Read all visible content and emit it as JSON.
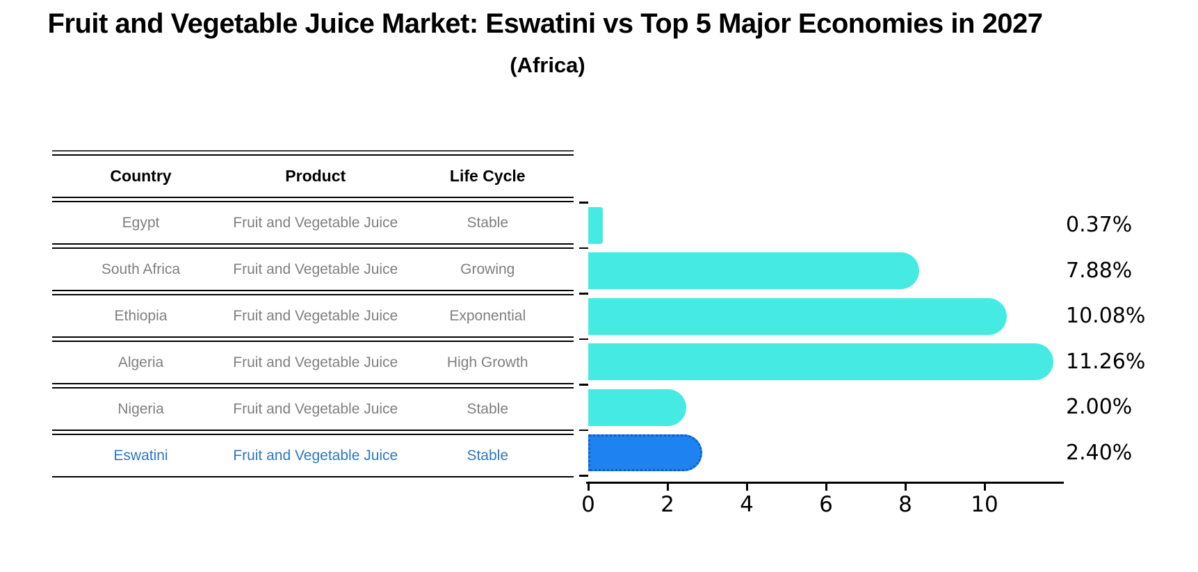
{
  "title": "Fruit and Vegetable Juice Market: Eswatini vs Top 5 Major Economies in 2027",
  "subtitle": "(Africa)",
  "table": {
    "headers": [
      "Country",
      "Product",
      "Life Cycle"
    ],
    "rows": [
      {
        "country": "Egypt",
        "product": "Fruit and Vegetable Juice",
        "life_cycle": "Stable",
        "highlighted": false
      },
      {
        "country": "South Africa",
        "product": "Fruit and Vegetable Juice",
        "life_cycle": "Growing",
        "highlighted": false
      },
      {
        "country": "Ethiopia",
        "product": "Fruit and Vegetable Juice",
        "life_cycle": "Exponential",
        "highlighted": false
      },
      {
        "country": "Algeria",
        "product": "Fruit and Vegetable Juice",
        "life_cycle": "High Growth",
        "highlighted": false
      },
      {
        "country": "Nigeria",
        "product": "Fruit and Vegetable Juice",
        "life_cycle": "Stable",
        "highlighted": false
      },
      {
        "country": "Eswatini",
        "product": "Fruit and Vegetable Juice",
        "life_cycle": "Stable",
        "highlighted": true
      }
    ]
  },
  "chart_data": {
    "type": "bar",
    "orientation": "horizontal",
    "title": "Fruit and Vegetable Juice Market: Eswatini vs Top 5 Major Economies in 2027",
    "subtitle": "(Africa)",
    "categories": [
      "Egypt",
      "South Africa",
      "Ethiopia",
      "Algeria",
      "Nigeria",
      "Eswatini"
    ],
    "values": [
      0.37,
      7.88,
      10.08,
      11.26,
      2.0,
      2.4
    ],
    "value_labels": [
      "0.37%",
      "7.88%",
      "10.08%",
      "11.26%",
      "2.00%",
      "2.40%"
    ],
    "xlabel": "",
    "ylabel": "",
    "xlim": [
      0,
      12
    ],
    "x_ticks": [
      0,
      2,
      4,
      6,
      8,
      10
    ],
    "grid": false,
    "legend": null,
    "highlight_index": 5,
    "bar_colors": [
      "#45EBE2",
      "#45EBE2",
      "#45EBE2",
      "#45EBE2",
      "#45EBE2",
      "#1E82F0"
    ],
    "highlight_border_color": "#0D5BD0"
  },
  "colors": {
    "bar_default": "#45EBE2",
    "bar_highlight": "#1E82F0",
    "highlight_border": "#0D5BD0",
    "row_text": "#7f7f7f",
    "highlight_row_text": "#2979C0",
    "axis": "#000000"
  }
}
